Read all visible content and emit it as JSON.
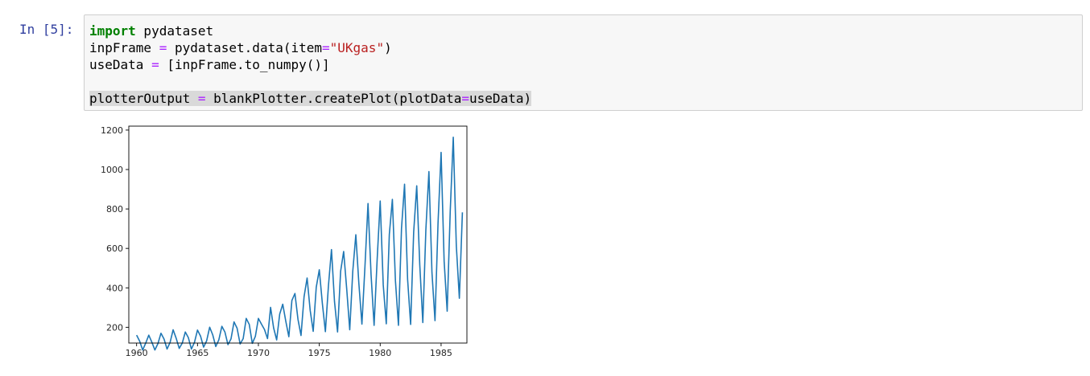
{
  "cell": {
    "prompt": "In [5]:",
    "code": {
      "line1": {
        "kw": "import",
        "rest": " pydataset"
      },
      "line2": {
        "a": "inpFrame ",
        "op1": "=",
        "b": " pydataset.data(item",
        "op2": "=",
        "str": "\"UKgas\"",
        "c": ")"
      },
      "line3": {
        "a": "useData ",
        "op1": "=",
        "b": " [inpFrame.to_numpy()]"
      },
      "line5": {
        "a": "plotterOutput ",
        "op1": "=",
        "b": " blankPlotter.createPlot(plotData",
        "op2": "=",
        "c": "useData)"
      }
    }
  },
  "chart_data": {
    "type": "line",
    "title": "",
    "xlabel": "",
    "ylabel": "",
    "xlim": [
      1959.36,
      1987.12
    ],
    "ylim": [
      120,
      1220
    ],
    "xticks": [
      1960,
      1965,
      1970,
      1975,
      1980,
      1985
    ],
    "yticks": [
      200,
      400,
      600,
      800,
      1000,
      1200
    ],
    "grid": false,
    "color": "#1f77b4",
    "series": [
      {
        "x_start": 1960.0,
        "x_step": 0.25,
        "values": [
          160.1,
          129.7,
          84.8,
          120.1,
          160.1,
          124.9,
          84.8,
          116.9,
          169.7,
          140.9,
          89.7,
          123.3,
          187.3,
          144.1,
          92.9,
          120.1,
          176.1,
          147.3,
          89.7,
          123.3,
          185.7,
          155.3,
          99.3,
          131.3,
          200.1,
          161.7,
          102.5,
          136.1,
          204.9,
          176.1,
          112.1,
          140.9,
          227.3,
          195.3,
          115.3,
          142.5,
          244.9,
          214.5,
          118.5,
          153.7,
          244.9,
          216.1,
          188.9,
          142.5,
          301.0,
          196.9,
          136.1,
          267.3,
          317.0,
          230.5,
          152.1,
          336.2,
          371.4,
          240.1,
          158.5,
          355.4,
          449.9,
          286.6,
          179.3,
          403.4,
          491.5,
          321.8,
          177.7,
          409.8,
          593.9,
          329.8,
          176.1,
          483.5,
          584.3,
          395.4,
          187.3,
          485.1,
          669.2,
          421.0,
          216.1,
          509.1,
          827.7,
          467.5,
          209.7,
          542.7,
          840.5,
          414.6,
          217.7,
          670.8,
          848.5,
          437.0,
          209.7,
          701.2,
          925.3,
          443.4,
          214.5,
          683.6,
          917.3,
          515.5,
          224.1,
          694.8,
          989.4,
          477.1,
          233.7,
          730.0,
          1087.0,
          534.7,
          281.8,
          787.6,
          1163.9,
          613.1,
          347.4,
          782.8
        ]
      }
    ]
  }
}
